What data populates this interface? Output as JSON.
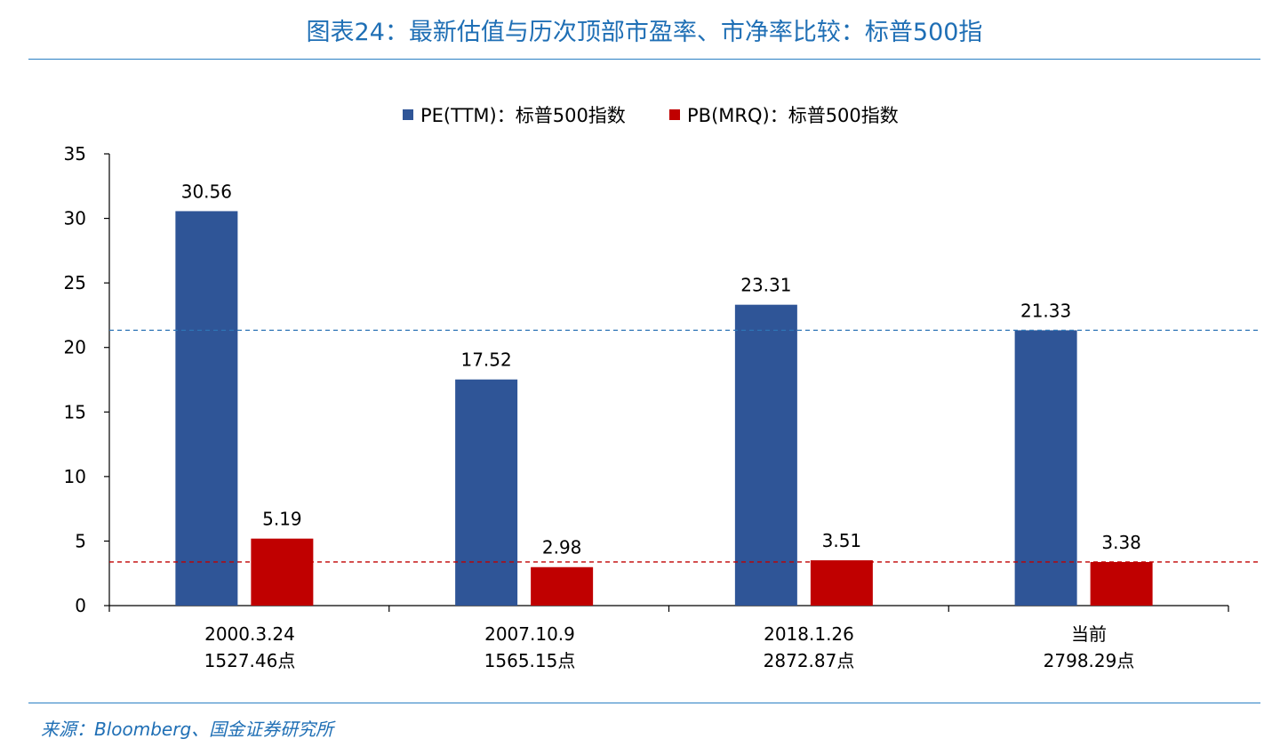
{
  "header": {
    "title": "图表24：最新估值与历次顶部市盈率、市净率比较：标普500指"
  },
  "footer": {
    "source": "来源：Bloomberg、国金证券研究所"
  },
  "colors": {
    "pe": "#2f5597",
    "pb": "#c00000",
    "title": "#1f6fb5",
    "pe_ref_line": "#2e75b6",
    "pb_ref_line": "#c00000"
  },
  "chart_data": {
    "type": "bar",
    "title": "",
    "xlabel": "",
    "ylabel": "",
    "categories": [
      "2000.3.24",
      "2007.10.9",
      "2018.1.26",
      "当前"
    ],
    "category_sublabels": [
      "1527.46点",
      "1565.15点",
      "2872.87点",
      "2798.29点"
    ],
    "series": [
      {
        "name": "PE(TTM)：标普500指数",
        "values": [
          30.56,
          17.52,
          23.31,
          21.33
        ],
        "labels": [
          "30.56",
          "17.52",
          "23.31",
          "21.33"
        ]
      },
      {
        "name": "PB(MRQ)：标普500指数",
        "values": [
          5.19,
          2.98,
          3.51,
          3.38
        ],
        "labels": [
          "5.19",
          "2.98",
          "3.51",
          "3.38"
        ]
      }
    ],
    "reference_lines": [
      {
        "series": "PE(TTM)：标普500指数",
        "value": 21.33,
        "style": "dashed"
      },
      {
        "series": "PB(MRQ)：标普500指数",
        "value": 3.38,
        "style": "dashed"
      }
    ],
    "ylim": [
      0,
      35
    ],
    "yticks": [
      "0",
      "5",
      "10",
      "15",
      "20",
      "25",
      "30",
      "35"
    ],
    "grid": false,
    "legend_position": "top-center"
  }
}
